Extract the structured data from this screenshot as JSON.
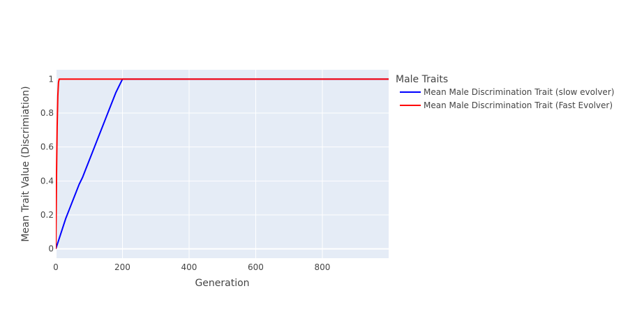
{
  "chart_data": {
    "type": "line",
    "title": "",
    "xlabel": "Generation",
    "ylabel": "Mean Trait Value (Discrimiation)",
    "xlim": [
      0,
      999
    ],
    "ylim": [
      -0.055,
      1.055
    ],
    "x_ticks": [
      0,
      200,
      400,
      600,
      800
    ],
    "y_ticks": [
      0,
      0.2,
      0.4,
      0.6,
      0.8,
      1
    ],
    "x_tick_labels": [
      "0",
      "200",
      "400",
      "600",
      "800"
    ],
    "y_tick_labels": [
      "0",
      "0.2",
      "0.4",
      "0.6",
      "0.8",
      "1"
    ],
    "grid": true,
    "legend": {
      "title": "Male Traits",
      "placement": "right"
    },
    "series": [
      {
        "name": "Mean Male Discrimination Trait (slow evolver)",
        "color": "#0000ff",
        "x": [
          0,
          10,
          20,
          30,
          40,
          50,
          60,
          70,
          80,
          90,
          100,
          110,
          120,
          130,
          140,
          150,
          160,
          170,
          180,
          190,
          200,
          999
        ],
        "y": [
          0,
          0.06,
          0.12,
          0.18,
          0.23,
          0.28,
          0.33,
          0.38,
          0.42,
          0.47,
          0.52,
          0.57,
          0.62,
          0.67,
          0.72,
          0.77,
          0.82,
          0.87,
          0.92,
          0.96,
          1,
          1
        ]
      },
      {
        "name": "Mean Male Discrimination Trait (Fast Evolver)",
        "color": "#ff0000",
        "x": [
          0,
          2,
          4,
          6,
          8,
          10,
          999
        ],
        "y": [
          0,
          0.42,
          0.72,
          0.9,
          0.98,
          1,
          1
        ]
      }
    ]
  },
  "colors": {
    "plot_background": "#e5ecf6",
    "grid": "#ffffff",
    "text": "#444444"
  }
}
